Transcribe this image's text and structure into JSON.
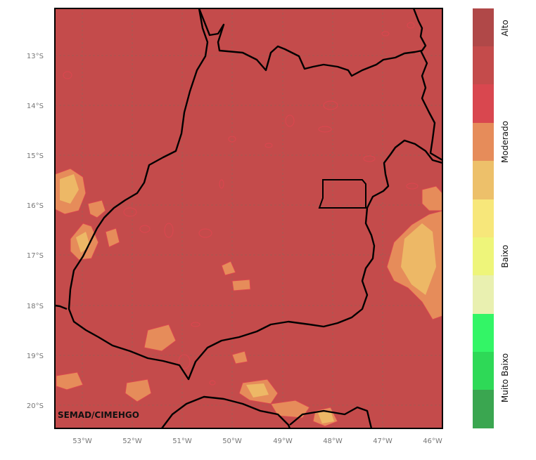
{
  "map": {
    "watermark": "SEMAD/CIMEHGO",
    "lon_ticks": [
      "53°W",
      "52°W",
      "51°W",
      "50°W",
      "49°W",
      "48°W",
      "47°W",
      "46°W"
    ],
    "lat_ticks": [
      "13°S",
      "14°S",
      "15°S",
      "16°S",
      "17°S",
      "18°S",
      "19°S",
      "20°S"
    ],
    "background_color": "#c44b4b",
    "boundary_color": "#000000",
    "grid_color": "#8a6a5a",
    "contour_colors": {
      "alto": "#c44b4b",
      "moderado_alto": "#e68c5a",
      "moderado": "#edb866"
    }
  },
  "colorbar": {
    "segments": [
      {
        "color": "#b04848"
      },
      {
        "color": "#c44b4b"
      },
      {
        "color": "#d9474f"
      },
      {
        "color": "#e68c5a"
      },
      {
        "color": "#edc06a"
      },
      {
        "color": "#f7e77a"
      },
      {
        "color": "#eef57a"
      },
      {
        "color": "#e9f0b0"
      },
      {
        "color": "#33f566"
      },
      {
        "color": "#2ed957"
      },
      {
        "color": "#3aa650"
      }
    ],
    "labels": [
      "Alto",
      "Moderado",
      "Baixo",
      "Muito Baixo"
    ]
  }
}
